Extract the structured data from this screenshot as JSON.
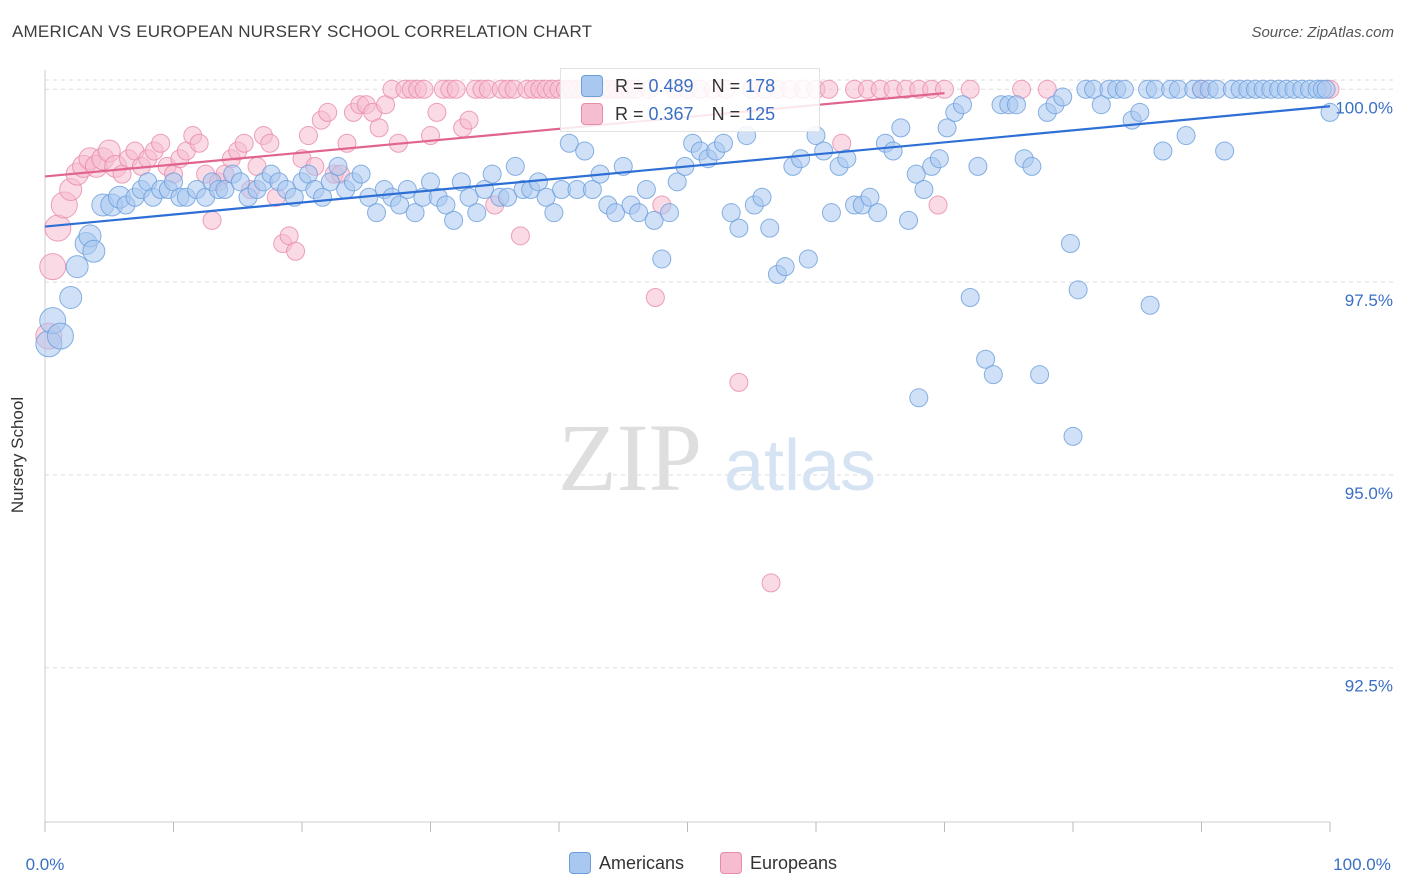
{
  "header": {
    "title": "AMERICAN VS EUROPEAN NURSERY SCHOOL CORRELATION CHART",
    "source": "Source: ZipAtlas.com"
  },
  "watermark": {
    "zip": "ZIP",
    "atlas": "atlas"
  },
  "stats": {
    "americans": {
      "r_label": "R = ",
      "r_value": "0.489",
      "n_label": "N = ",
      "n_value": "178"
    },
    "europeans": {
      "r_label": "R = ",
      "r_value": "0.367",
      "n_label": "N = ",
      "n_value": "125"
    }
  },
  "legend": {
    "americans": "Americans",
    "europeans": "Europeans"
  },
  "colors": {
    "americans_fill": "#a9c8f0",
    "americans_stroke": "#6a9edc",
    "americans_line": "#2e6fd6",
    "europeans_fill": "#f6bcd0",
    "europeans_stroke": "#e88aaa",
    "europeans_line": "#e0648e",
    "tick_label": "#3a6fc4",
    "grid": "#dddddd"
  },
  "chart_data": {
    "type": "scatter",
    "title": "AMERICAN VS EUROPEAN NURSERY SCHOOL CORRELATION CHART",
    "xlabel": "",
    "ylabel": "Nursery School",
    "xlim": [
      0,
      100
    ],
    "ylim": [
      90.5,
      100.25
    ],
    "x_tick_labels": [
      "0.0%",
      "100.0%"
    ],
    "y_ticks": [
      92.5,
      95.0,
      97.5,
      100.0
    ],
    "y_tick_labels": [
      "92.5%",
      "95.0%",
      "97.5%",
      "100.0%"
    ],
    "grid": true,
    "legend_position": "bottom",
    "series": [
      {
        "name": "Americans",
        "trend": {
          "x": [
            0,
            100
          ],
          "y": [
            98.22,
            99.78
          ]
        },
        "points": [
          [
            0.3,
            96.7
          ],
          [
            0.6,
            97.0
          ],
          [
            1.2,
            96.8
          ],
          [
            2.0,
            97.3
          ],
          [
            2.5,
            97.7
          ],
          [
            3.2,
            98.0
          ],
          [
            3.5,
            98.1
          ],
          [
            3.8,
            97.9
          ],
          [
            4.5,
            98.5
          ],
          [
            5.2,
            98.5
          ],
          [
            5.8,
            98.6
          ],
          [
            6.3,
            98.5
          ],
          [
            7.0,
            98.6
          ],
          [
            7.5,
            98.7
          ],
          [
            8.0,
            98.8
          ],
          [
            8.4,
            98.6
          ],
          [
            9.0,
            98.7
          ],
          [
            9.6,
            98.7
          ],
          [
            10.0,
            98.8
          ],
          [
            10.5,
            98.6
          ],
          [
            11.0,
            98.6
          ],
          [
            11.8,
            98.7
          ],
          [
            12.5,
            98.6
          ],
          [
            13.0,
            98.8
          ],
          [
            13.5,
            98.7
          ],
          [
            14.0,
            98.7
          ],
          [
            14.6,
            98.9
          ],
          [
            15.2,
            98.8
          ],
          [
            15.8,
            98.6
          ],
          [
            16.5,
            98.7
          ],
          [
            17.0,
            98.8
          ],
          [
            17.6,
            98.9
          ],
          [
            18.2,
            98.8
          ],
          [
            18.8,
            98.7
          ],
          [
            19.4,
            98.6
          ],
          [
            20.0,
            98.8
          ],
          [
            20.5,
            98.9
          ],
          [
            21.0,
            98.7
          ],
          [
            21.6,
            98.6
          ],
          [
            22.2,
            98.8
          ],
          [
            22.8,
            99.0
          ],
          [
            23.4,
            98.7
          ],
          [
            24.0,
            98.8
          ],
          [
            24.6,
            98.9
          ],
          [
            25.2,
            98.6
          ],
          [
            25.8,
            98.4
          ],
          [
            26.4,
            98.7
          ],
          [
            27.0,
            98.6
          ],
          [
            27.6,
            98.5
          ],
          [
            28.2,
            98.7
          ],
          [
            28.8,
            98.4
          ],
          [
            29.4,
            98.6
          ],
          [
            30.0,
            98.8
          ],
          [
            30.6,
            98.6
          ],
          [
            31.2,
            98.5
          ],
          [
            31.8,
            98.3
          ],
          [
            32.4,
            98.8
          ],
          [
            33.0,
            98.6
          ],
          [
            33.6,
            98.4
          ],
          [
            34.2,
            98.7
          ],
          [
            34.8,
            98.9
          ],
          [
            35.4,
            98.6
          ],
          [
            36.0,
            98.6
          ],
          [
            36.6,
            99.0
          ],
          [
            37.2,
            98.7
          ],
          [
            37.8,
            98.7
          ],
          [
            38.4,
            98.8
          ],
          [
            39.0,
            98.6
          ],
          [
            39.6,
            98.4
          ],
          [
            40.2,
            98.7
          ],
          [
            40.8,
            99.3
          ],
          [
            41.4,
            98.7
          ],
          [
            42.0,
            99.2
          ],
          [
            42.6,
            98.7
          ],
          [
            43.2,
            98.9
          ],
          [
            43.8,
            98.5
          ],
          [
            44.4,
            98.4
          ],
          [
            45.0,
            99.0
          ],
          [
            45.6,
            98.5
          ],
          [
            46.2,
            98.4
          ],
          [
            46.8,
            98.7
          ],
          [
            47.4,
            98.3
          ],
          [
            48.0,
            97.8
          ],
          [
            48.6,
            98.4
          ],
          [
            49.2,
            98.8
          ],
          [
            49.8,
            99.0
          ],
          [
            50.4,
            99.3
          ],
          [
            51.0,
            99.2
          ],
          [
            51.6,
            99.1
          ],
          [
            52.2,
            99.2
          ],
          [
            52.8,
            99.3
          ],
          [
            53.4,
            98.4
          ],
          [
            54.0,
            98.2
          ],
          [
            54.6,
            99.4
          ],
          [
            55.2,
            98.5
          ],
          [
            55.8,
            98.6
          ],
          [
            56.4,
            98.2
          ],
          [
            57.0,
            97.6
          ],
          [
            57.6,
            97.7
          ],
          [
            58.2,
            99.0
          ],
          [
            58.8,
            99.1
          ],
          [
            59.4,
            97.8
          ],
          [
            60.0,
            99.4
          ],
          [
            60.6,
            99.2
          ],
          [
            61.2,
            98.4
          ],
          [
            61.8,
            99.0
          ],
          [
            62.4,
            99.1
          ],
          [
            63.0,
            98.5
          ],
          [
            63.6,
            98.5
          ],
          [
            64.2,
            98.6
          ],
          [
            64.8,
            98.4
          ],
          [
            65.4,
            99.3
          ],
          [
            66.0,
            99.2
          ],
          [
            66.6,
            99.5
          ],
          [
            67.2,
            98.3
          ],
          [
            67.8,
            98.9
          ],
          [
            68.4,
            98.7
          ],
          [
            69.0,
            99.0
          ],
          [
            69.6,
            99.1
          ],
          [
            70.2,
            99.5
          ],
          [
            70.8,
            99.7
          ],
          [
            71.4,
            99.8
          ],
          [
            72.0,
            97.3
          ],
          [
            72.6,
            99.0
          ],
          [
            73.2,
            96.5
          ],
          [
            73.8,
            96.3
          ],
          [
            74.4,
            99.8
          ],
          [
            75.0,
            99.8
          ],
          [
            75.6,
            99.8
          ],
          [
            76.2,
            99.1
          ],
          [
            76.8,
            99.0
          ],
          [
            77.4,
            96.3
          ],
          [
            78.0,
            99.7
          ],
          [
            78.6,
            99.8
          ],
          [
            79.2,
            99.9
          ],
          [
            79.8,
            98.0
          ],
          [
            80.4,
            97.4
          ],
          [
            81.0,
            100.0
          ],
          [
            81.6,
            100.0
          ],
          [
            82.2,
            99.8
          ],
          [
            82.8,
            100.0
          ],
          [
            83.4,
            100.0
          ],
          [
            84.0,
            100.0
          ],
          [
            84.6,
            99.6
          ],
          [
            85.2,
            99.7
          ],
          [
            85.8,
            100.0
          ],
          [
            86.4,
            100.0
          ],
          [
            87.0,
            99.2
          ],
          [
            87.6,
            100.0
          ],
          [
            88.2,
            100.0
          ],
          [
            88.8,
            99.4
          ],
          [
            89.4,
            100.0
          ],
          [
            90.0,
            100.0
          ],
          [
            90.6,
            100.0
          ],
          [
            91.2,
            100.0
          ],
          [
            91.8,
            99.2
          ],
          [
            92.4,
            100.0
          ],
          [
            93.0,
            100.0
          ],
          [
            93.6,
            100.0
          ],
          [
            94.2,
            100.0
          ],
          [
            94.8,
            100.0
          ],
          [
            95.4,
            100.0
          ],
          [
            96.0,
            100.0
          ],
          [
            96.6,
            100.0
          ],
          [
            97.2,
            100.0
          ],
          [
            97.8,
            100.0
          ],
          [
            98.4,
            100.0
          ],
          [
            99.0,
            100.0
          ],
          [
            99.4,
            100.0
          ],
          [
            99.7,
            100.0
          ],
          [
            100.0,
            99.7
          ],
          [
            86.0,
            97.2
          ],
          [
            80.0,
            95.5
          ],
          [
            68.0,
            96.0
          ]
        ]
      },
      {
        "name": "Europeans",
        "trend": {
          "x": [
            0,
            70
          ],
          "y": [
            98.87,
            99.95
          ]
        },
        "points": [
          [
            0.3,
            96.8
          ],
          [
            0.6,
            97.7
          ],
          [
            1.0,
            98.2
          ],
          [
            1.5,
            98.5
          ],
          [
            2.0,
            98.7
          ],
          [
            2.5,
            98.9
          ],
          [
            3.0,
            99.0
          ],
          [
            3.5,
            99.1
          ],
          [
            4.0,
            99.0
          ],
          [
            4.5,
            99.1
          ],
          [
            5.0,
            99.2
          ],
          [
            5.5,
            99.0
          ],
          [
            6.0,
            98.9
          ],
          [
            6.5,
            99.1
          ],
          [
            7.0,
            99.2
          ],
          [
            7.5,
            99.0
          ],
          [
            8.0,
            99.1
          ],
          [
            8.5,
            99.2
          ],
          [
            9.0,
            99.3
          ],
          [
            9.5,
            99.0
          ],
          [
            10.0,
            98.9
          ],
          [
            10.5,
            99.1
          ],
          [
            11.0,
            99.2
          ],
          [
            11.5,
            99.4
          ],
          [
            12.0,
            99.3
          ],
          [
            12.5,
            98.9
          ],
          [
            13.0,
            98.3
          ],
          [
            13.5,
            98.8
          ],
          [
            14.0,
            98.9
          ],
          [
            14.5,
            99.1
          ],
          [
            15.0,
            99.2
          ],
          [
            15.5,
            99.3
          ],
          [
            16.0,
            98.7
          ],
          [
            16.5,
            99.0
          ],
          [
            17.0,
            99.4
          ],
          [
            17.5,
            99.3
          ],
          [
            18.0,
            98.6
          ],
          [
            18.5,
            98.0
          ],
          [
            19.0,
            98.1
          ],
          [
            19.5,
            97.9
          ],
          [
            20.0,
            99.1
          ],
          [
            20.5,
            99.4
          ],
          [
            21.0,
            99.0
          ],
          [
            21.5,
            99.6
          ],
          [
            22.0,
            99.7
          ],
          [
            22.5,
            98.9
          ],
          [
            23.0,
            98.9
          ],
          [
            23.5,
            99.3
          ],
          [
            24.0,
            99.7
          ],
          [
            24.5,
            99.8
          ],
          [
            25.0,
            99.8
          ],
          [
            25.5,
            99.7
          ],
          [
            26.0,
            99.5
          ],
          [
            26.5,
            99.8
          ],
          [
            27.0,
            100.0
          ],
          [
            27.5,
            99.3
          ],
          [
            28.0,
            100.0
          ],
          [
            28.5,
            100.0
          ],
          [
            29.0,
            100.0
          ],
          [
            29.5,
            100.0
          ],
          [
            30.0,
            99.4
          ],
          [
            30.5,
            99.7
          ],
          [
            31.0,
            100.0
          ],
          [
            31.5,
            100.0
          ],
          [
            32.0,
            100.0
          ],
          [
            32.5,
            99.5
          ],
          [
            33.0,
            99.6
          ],
          [
            33.5,
            100.0
          ],
          [
            34.0,
            100.0
          ],
          [
            34.5,
            100.0
          ],
          [
            35.0,
            98.5
          ],
          [
            35.5,
            100.0
          ],
          [
            36.0,
            100.0
          ],
          [
            36.5,
            100.0
          ],
          [
            37.0,
            98.1
          ],
          [
            37.5,
            100.0
          ],
          [
            38.0,
            100.0
          ],
          [
            38.5,
            100.0
          ],
          [
            39.0,
            100.0
          ],
          [
            39.5,
            100.0
          ],
          [
            40.0,
            100.0
          ],
          [
            40.5,
            100.0
          ],
          [
            41.0,
            100.0
          ],
          [
            41.5,
            100.0
          ],
          [
            42.0,
            100.0
          ],
          [
            42.5,
            100.0
          ],
          [
            43.0,
            100.0
          ],
          [
            43.5,
            100.0
          ],
          [
            44.0,
            100.0
          ],
          [
            44.5,
            100.0
          ],
          [
            45.0,
            100.0
          ],
          [
            45.5,
            100.0
          ],
          [
            46.0,
            100.0
          ],
          [
            47.0,
            100.0
          ],
          [
            47.5,
            97.3
          ],
          [
            48.0,
            98.5
          ],
          [
            49.0,
            100.0
          ],
          [
            50.0,
            100.0
          ],
          [
            51.0,
            100.0
          ],
          [
            52.0,
            100.0
          ],
          [
            53.0,
            100.0
          ],
          [
            54.0,
            96.2
          ],
          [
            55.0,
            100.0
          ],
          [
            56.0,
            100.0
          ],
          [
            56.5,
            93.6
          ],
          [
            57.0,
            100.0
          ],
          [
            58.0,
            100.0
          ],
          [
            59.0,
            100.0
          ],
          [
            60.0,
            100.0
          ],
          [
            61.0,
            100.0
          ],
          [
            62.0,
            99.3
          ],
          [
            63.0,
            100.0
          ],
          [
            64.0,
            100.0
          ],
          [
            65.0,
            100.0
          ],
          [
            66.0,
            100.0
          ],
          [
            67.0,
            100.0
          ],
          [
            68.0,
            100.0
          ],
          [
            69.0,
            100.0
          ],
          [
            69.5,
            98.5
          ],
          [
            70.0,
            100.0
          ],
          [
            72.0,
            100.0
          ],
          [
            76.0,
            100.0
          ],
          [
            78.0,
            100.0
          ],
          [
            90.0,
            100.0
          ],
          [
            100.0,
            100.0
          ]
        ]
      }
    ]
  }
}
